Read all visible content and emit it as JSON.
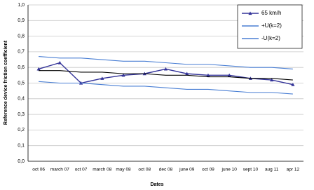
{
  "chart_data": {
    "type": "line",
    "x_label": "Dates",
    "y_label": "Reference device friction coefficient",
    "categories": [
      "oct 06",
      "march 07",
      "oct 07",
      "march 08",
      "may 08",
      "oct 08",
      "dec 08",
      "june 09",
      "oct 09",
      "june 10",
      "sept 10",
      "aug 11",
      "apr 12"
    ],
    "series": [
      {
        "name": "65 km/h",
        "color": "#333399",
        "marker": "triangle",
        "values": [
          0.59,
          0.63,
          0.5,
          0.53,
          0.55,
          0.56,
          0.59,
          0.56,
          0.55,
          0.55,
          0.53,
          0.52,
          0.49
        ]
      },
      {
        "name": "+U(k=2)",
        "color": "#4a7fd4",
        "values": [
          0.67,
          0.66,
          0.66,
          0.65,
          0.64,
          0.64,
          0.63,
          0.62,
          0.62,
          0.61,
          0.6,
          0.6,
          0.59
        ]
      },
      {
        "name": "-U(k=2)",
        "color": "#4a7fd4",
        "values": [
          0.51,
          0.5,
          0.5,
          0.49,
          0.48,
          0.48,
          0.47,
          0.46,
          0.46,
          0.45,
          0.44,
          0.44,
          0.43
        ]
      },
      {
        "color": "#000000",
        "values": [
          0.58,
          0.58,
          0.57,
          0.57,
          0.56,
          0.56,
          0.55,
          0.55,
          0.54,
          0.54,
          0.53,
          0.53,
          0.52
        ]
      }
    ],
    "ylim": [
      0,
      1
    ],
    "yticks": [
      {
        "value": 0,
        "label": "0,0"
      },
      {
        "value": 0.1,
        "label": "0,1"
      },
      {
        "value": 0.2,
        "label": "0,2"
      },
      {
        "value": 0.3,
        "label": "0,3"
      },
      {
        "value": 0.4,
        "label": "0,4"
      },
      {
        "value": 0.5,
        "label": "0,5"
      },
      {
        "value": 0.6,
        "label": "0,6"
      },
      {
        "value": 0.7,
        "label": "0,7"
      },
      {
        "value": 0.8,
        "label": "0,8"
      },
      {
        "value": 0.9,
        "label": "0,9"
      },
      {
        "value": 1,
        "label": "1,0"
      }
    ],
    "grid": true,
    "legend": "upper right"
  }
}
